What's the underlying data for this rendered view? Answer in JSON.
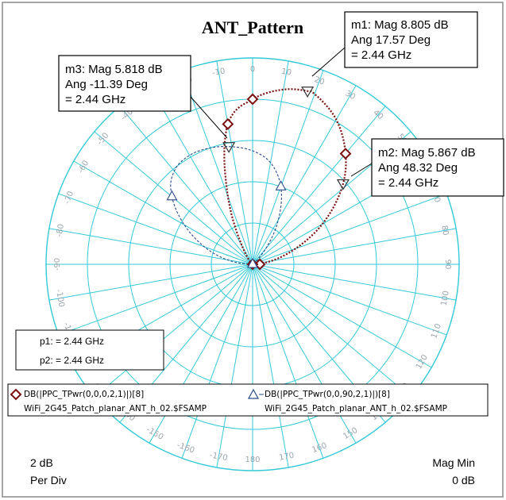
{
  "chart_data": {
    "type": "polar",
    "title": "ANT_Pattern",
    "scale": {
      "per_div_value": "2 dB",
      "per_div_label": "Per Div",
      "min_label": "Mag Min",
      "min_value": "0 dB"
    },
    "angle_ticks": [
      "0",
      "10",
      "20",
      "30",
      "40",
      "50",
      "60",
      "70",
      "80",
      "90",
      "100",
      "110",
      "120",
      "130",
      "140",
      "150",
      "160",
      "170",
      "180",
      "-170",
      "-160",
      "-150",
      "-140",
      "-130",
      "-120",
      "-110",
      "-100",
      "-90",
      "-80",
      "-70",
      "-60",
      "-50",
      "-40",
      "-30",
      "-20",
      "-10"
    ],
    "series": [
      {
        "name": "DB(|PPC_TPwr(0,0,0,2,1)|)[8]",
        "source": "WiFi_2G45_Patch_planar_ANT_h_02.$FSAMP",
        "color": "#7a1010",
        "style": "dotted",
        "marker": "diamond",
        "points": [
          [
            -45,
            0
          ],
          [
            -30,
            1.0
          ],
          [
            -20,
            3.5
          ],
          [
            -10,
            6.9
          ],
          [
            0,
            8.0
          ],
          [
            10,
            8.6
          ],
          [
            17.57,
            8.805
          ],
          [
            20,
            8.78
          ],
          [
            30,
            8.1
          ],
          [
            40,
            7.0
          ],
          [
            48.32,
            5.867
          ],
          [
            60,
            3.9
          ],
          [
            70,
            2.2
          ],
          [
            80,
            0.9
          ],
          [
            90,
            0
          ]
        ]
      },
      {
        "name": "DB(|PPC_TPwr(0,0,90,2,1)|)[8]",
        "source": "WiFi_2G45_Patch_planar_ANT_h_02.$FSAMP",
        "color": "#2a4a8a",
        "style": "dotted",
        "marker": "triangle",
        "points": [
          [
            -90,
            0
          ],
          [
            -70,
            2.5
          ],
          [
            -50,
            5.1
          ],
          [
            -40,
            5.9
          ],
          [
            -30,
            6.1
          ],
          [
            -20,
            6.0
          ],
          [
            -11.39,
            5.818
          ],
          [
            0,
            5.5
          ],
          [
            10,
            5.0
          ],
          [
            20,
            4.0
          ],
          [
            30,
            2.5
          ],
          [
            40,
            1.0
          ],
          [
            50,
            0
          ]
        ]
      }
    ],
    "markers": [
      {
        "id": "m1",
        "lines": [
          "m1: Mag 8.805 dB",
          "Ang 17.57 Deg",
          "= 2.44 GHz"
        ],
        "angle": 17.57,
        "mag": 8.805
      },
      {
        "id": "m2",
        "lines": [
          "m2: Mag 5.867 dB",
          "Ang 48.32 Deg",
          "= 2.44 GHz"
        ],
        "angle": 48.32,
        "mag": 5.867
      },
      {
        "id": "m3",
        "lines": [
          "m3: Mag 5.818 dB",
          "Ang -11.39 Deg",
          "= 2.44 GHz"
        ],
        "angle": -11.39,
        "mag": 5.818
      }
    ],
    "params": [
      "p1: = 2.44 GHz",
      "p2: = 2.44 GHz"
    ],
    "colors": {
      "grid": "#33c9d8",
      "tick_text": "#9aa6ae",
      "frame": "#8a8a8a"
    }
  }
}
